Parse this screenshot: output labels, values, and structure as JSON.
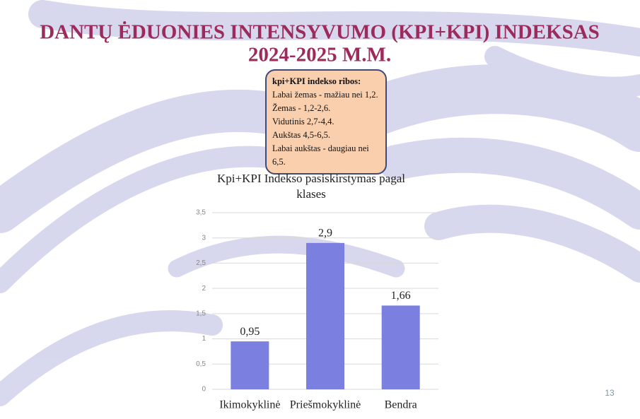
{
  "slide": {
    "title": [
      "DANTŲ ĖDUONIES INTENSYVUMO (KPI+KPI) INDEKSAS",
      "2024-2025 M.M."
    ],
    "info_box": {
      "heading": "kpi+KPI indekso ribos:",
      "lines": [
        "Labai žemas - mažiau nei 1,2.",
        "Žemas - 1,2-2,6.",
        "Vidutinis 2,7-4,4.",
        "Aukštas 4,5-6,5.",
        "Labai aukštas - daugiau nei 6,5."
      ]
    },
    "page_number": "13"
  },
  "chart_data": {
    "type": "bar",
    "title": "Kpi+KPI Indekso pasiskirstymas pagal klases",
    "categories": [
      "Ikimokyklinė",
      "Priešmokyklinė",
      "Bendra"
    ],
    "values": [
      0.95,
      2.9,
      1.66
    ],
    "value_labels": [
      "0,95",
      "2,9",
      "1,66"
    ],
    "color": "#7b80e0",
    "ylim": [
      0,
      3.5
    ],
    "yticks": [
      0,
      {
        "value": 0.5,
        "label": "0,5"
      },
      1,
      {
        "value": 1.5,
        "label": "1,5"
      },
      2,
      {
        "value": 2.5,
        "label": "2,5"
      },
      3,
      {
        "value": 3.5,
        "label": "3,5"
      }
    ],
    "grid": true
  }
}
